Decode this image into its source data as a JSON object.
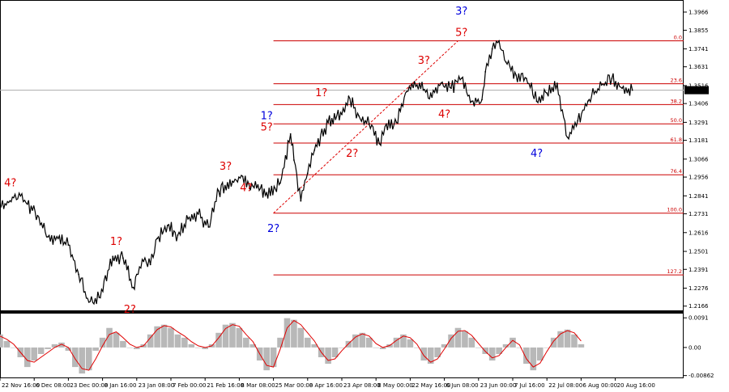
{
  "chart_data": {
    "type": "line",
    "symbol_note": "",
    "price_axis": {
      "labels": [
        "1.3966",
        "1.3855",
        "1.3741",
        "1.3631",
        "1.3516",
        "1.3406",
        "1.3291",
        "1.3181",
        "1.3066",
        "1.2956",
        "1.2841",
        "1.2731",
        "1.2616",
        "1.2501",
        "1.2391",
        "1.2276",
        "1.2166"
      ],
      "values": [
        1.3966,
        1.3855,
        1.3741,
        1.3631,
        1.3516,
        1.3406,
        1.3291,
        1.3181,
        1.3066,
        1.2956,
        1.2841,
        1.2731,
        1.2616,
        1.2501,
        1.2391,
        1.2276,
        1.2166
      ],
      "range": [
        1.2135,
        1.404
      ]
    },
    "current_price": "1.3488",
    "time_axis": {
      "labels": [
        "22 Nov 16:00",
        "6 Dec 08:00",
        "23 Dec 00:00",
        "8 Jan 16:00",
        "23 Jan 08:00",
        "7 Feb 00:00",
        "21 Feb 16:00",
        "8 Mar 08:00",
        "25 Mar 00:00",
        "8 Apr 16:00",
        "23 Apr 08:00",
        "8 May 00:00",
        "22 May 16:00",
        "6 Jun 08:00",
        "23 Jun 00:00",
        "7 Jul 16:00",
        "22 Jul 08:00",
        "6 Aug 00:00",
        "20 Aug 16:00"
      ],
      "index": [
        0,
        10,
        20,
        30,
        40,
        50,
        60,
        70,
        80,
        90,
        100,
        110,
        120,
        130,
        140,
        150,
        160,
        170,
        180
      ],
      "range": [
        0,
        200
      ]
    },
    "price_series": {
      "name": "",
      "x": [
        0,
        4,
        6,
        8,
        11,
        14,
        17,
        20,
        23,
        26,
        29,
        33,
        36,
        39,
        40,
        42,
        44,
        46,
        49,
        52,
        55,
        58,
        61,
        64,
        68,
        71,
        74,
        78,
        82,
        85,
        86,
        88,
        90,
        92,
        96,
        100,
        102,
        105,
        108,
        111,
        113,
        116,
        119,
        122,
        126,
        129,
        132,
        135,
        138,
        141,
        142,
        144,
        146,
        148,
        151,
        154,
        157,
        160,
        163,
        166,
        169,
        172,
        176,
        179,
        182,
        185
      ],
      "y": [
        1.276,
        1.283,
        1.284,
        1.279,
        1.272,
        1.259,
        1.258,
        1.254,
        1.236,
        1.219,
        1.222,
        1.247,
        1.246,
        1.228,
        1.236,
        1.244,
        1.242,
        1.258,
        1.266,
        1.26,
        1.27,
        1.273,
        1.265,
        1.287,
        1.293,
        1.296,
        1.29,
        1.286,
        1.292,
        1.322,
        1.306,
        1.281,
        1.298,
        1.312,
        1.329,
        1.334,
        1.345,
        1.333,
        1.328,
        1.316,
        1.328,
        1.329,
        1.348,
        1.352,
        1.347,
        1.353,
        1.35,
        1.356,
        1.342,
        1.343,
        1.36,
        1.374,
        1.379,
        1.366,
        1.358,
        1.356,
        1.342,
        1.347,
        1.353,
        1.32,
        1.33,
        1.342,
        1.352,
        1.356,
        1.35,
        1.3488
      ]
    },
    "fibonacci": [
      {
        "label": "0.0",
        "price": 1.379
      },
      {
        "label": "23.6",
        "price": 1.3527
      },
      {
        "label": "38.2",
        "price": 1.34
      },
      {
        "label": "50.0",
        "price": 1.3282
      },
      {
        "label": "61.8",
        "price": 1.3164
      },
      {
        "label": "76.4",
        "price": 1.297
      },
      {
        "label": "100.0",
        "price": 1.2735
      },
      {
        "label": "127.2",
        "price": 1.2357
      }
    ],
    "wave_labels": [
      {
        "text": "4?",
        "color": "#dd0000",
        "x": 3,
        "y": 1.29
      },
      {
        "text": "1?",
        "color": "#dd0000",
        "x": 34,
        "y": 1.254
      },
      {
        "text": "2?",
        "color": "#dd0000",
        "x": 38,
        "y": 1.2125
      },
      {
        "text": "3?",
        "color": "#dd0000",
        "x": 66,
        "y": 1.3
      },
      {
        "text": "4?",
        "color": "#dd0000",
        "x": 72,
        "y": 1.287
      },
      {
        "text": "1?",
        "color": "#0000dd",
        "x": 78,
        "y": 1.331
      },
      {
        "text": "5?",
        "color": "#dd0000",
        "x": 78,
        "y": 1.324
      },
      {
        "text": "2?",
        "color": "#0000dd",
        "x": 80,
        "y": 1.262
      },
      {
        "text": "1?",
        "color": "#dd0000",
        "x": 94,
        "y": 1.345
      },
      {
        "text": "2?",
        "color": "#dd0000",
        "x": 103,
        "y": 1.308
      },
      {
        "text": "3?",
        "color": "#dd0000",
        "x": 124,
        "y": 1.365
      },
      {
        "text": "4?",
        "color": "#dd0000",
        "x": 130,
        "y": 1.332
      },
      {
        "text": "3?",
        "color": "#0000dd",
        "x": 135,
        "y": 1.395
      },
      {
        "text": "5?",
        "color": "#dd0000",
        "x": 135,
        "y": 1.382
      },
      {
        "text": "4?",
        "color": "#0000dd",
        "x": 157,
        "y": 1.308
      }
    ],
    "trendline": {
      "x": [
        80,
        134
      ],
      "y": [
        1.2735,
        1.379
      ]
    },
    "oscillator": {
      "labels": [
        "0.0091",
        "0.00",
        "-0.00862"
      ],
      "values": [
        0.0091,
        0.0,
        -0.00862
      ],
      "range": [
        -0.0092,
        0.0104
      ],
      "x": [
        0,
        2,
        4,
        6,
        8,
        10,
        12,
        14,
        16,
        18,
        20,
        22,
        24,
        26,
        28,
        30,
        32,
        34,
        36,
        38,
        40,
        42,
        44,
        46,
        48,
        50,
        52,
        54,
        56,
        58,
        60,
        62,
        64,
        66,
        68,
        70,
        72,
        74,
        76,
        78,
        80,
        82,
        84,
        86,
        88,
        90,
        92,
        94,
        96,
        98,
        100,
        102,
        104,
        106,
        108,
        110,
        112,
        114,
        116,
        118,
        120,
        122,
        124,
        126,
        128,
        130,
        132,
        134,
        136,
        138,
        140,
        142,
        144,
        146,
        148,
        150,
        152,
        154,
        156,
        158,
        160,
        162,
        164,
        166,
        168,
        170
      ],
      "hist": [
        0.004,
        0.002,
        0.0,
        -0.003,
        -0.006,
        -0.004,
        -0.002,
        -0.0005,
        0.001,
        0.0015,
        -0.001,
        -0.006,
        -0.008,
        -0.007,
        -0.001,
        0.003,
        0.006,
        0.0045,
        0.002,
        0.0,
        -0.0005,
        0.001,
        0.004,
        0.0065,
        0.007,
        0.006,
        0.004,
        0.003,
        0.001,
        0.0,
        -0.0005,
        0.001,
        0.0045,
        0.007,
        0.0075,
        0.006,
        0.003,
        0.001,
        -0.004,
        -0.007,
        -0.006,
        0.003,
        0.009,
        0.0085,
        0.006,
        0.003,
        0.001,
        -0.003,
        -0.005,
        -0.003,
        0.0,
        0.002,
        0.004,
        0.0045,
        0.003,
        0.0,
        -0.0005,
        0.001,
        0.003,
        0.004,
        0.0025,
        0.0,
        -0.004,
        -0.005,
        -0.003,
        0.001,
        0.004,
        0.006,
        0.005,
        0.003,
        0.0,
        -0.002,
        -0.004,
        -0.002,
        0.001,
        0.003,
        0.0,
        -0.005,
        -0.007,
        -0.004,
        0.0,
        0.003,
        0.005,
        0.0055,
        0.004,
        0.001
      ],
      "signal": [
        0.0035,
        0.0025,
        0.001,
        -0.0015,
        -0.004,
        -0.0045,
        -0.003,
        -0.0015,
        0.0,
        0.001,
        0.0,
        -0.0035,
        -0.0065,
        -0.007,
        -0.0035,
        0.0005,
        0.004,
        0.0048,
        0.003,
        0.001,
        0.0,
        0.0005,
        0.003,
        0.0055,
        0.0067,
        0.0063,
        0.0048,
        0.0035,
        0.0018,
        0.0005,
        0.0,
        0.0005,
        0.003,
        0.0058,
        0.007,
        0.0065,
        0.004,
        0.0018,
        -0.002,
        -0.0055,
        -0.006,
        -0.0005,
        0.006,
        0.0083,
        0.007,
        0.0045,
        0.002,
        -0.0015,
        -0.004,
        -0.0035,
        -0.001,
        0.0012,
        0.0032,
        0.0042,
        0.0035,
        0.0012,
        0.0,
        0.0006,
        0.0022,
        0.0035,
        0.003,
        0.001,
        -0.0025,
        -0.0045,
        -0.0035,
        -0.0005,
        0.0028,
        0.005,
        0.0052,
        0.0037,
        0.0012,
        -0.0012,
        -0.0032,
        -0.0025,
        0.0,
        0.0022,
        0.0008,
        -0.0035,
        -0.006,
        -0.0048,
        -0.0012,
        0.002,
        0.0042,
        0.0052,
        0.0045,
        0.002
      ]
    }
  }
}
